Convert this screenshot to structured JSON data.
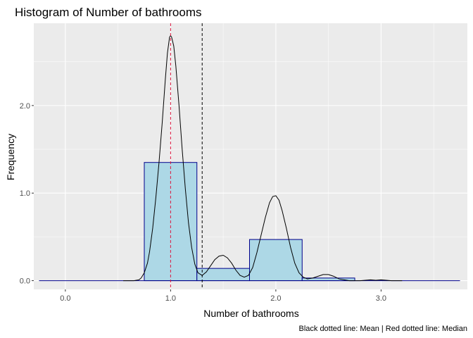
{
  "chart_data": {
    "type": "bar",
    "title": "Histogram of Number of bathrooms",
    "xlabel": "Number of bathrooms",
    "ylabel": "Frequency",
    "caption": "Black dotted  line: Mean   |    Red dotted line: Median",
    "xlim": [
      -0.3,
      3.82
    ],
    "ylim": [
      -0.1,
      2.94
    ],
    "x_ticks": [
      0.0,
      1.0,
      2.0,
      3.0
    ],
    "x_tick_labels": [
      "0.0",
      "1.0",
      "2.0",
      "3.0"
    ],
    "y_ticks": [
      0.0,
      1.0,
      2.0
    ],
    "y_tick_labels": [
      "0.0",
      "1.0",
      "2.0"
    ],
    "grid": true,
    "bins": [
      {
        "x_min": -0.25,
        "x_max": 0.25,
        "value": 0.0
      },
      {
        "x_min": 0.25,
        "x_max": 0.75,
        "value": 0.0
      },
      {
        "x_min": 0.75,
        "x_max": 1.25,
        "value": 1.35
      },
      {
        "x_min": 1.25,
        "x_max": 1.75,
        "value": 0.14
      },
      {
        "x_min": 1.75,
        "x_max": 2.25,
        "value": 0.47
      },
      {
        "x_min": 2.25,
        "x_max": 2.75,
        "value": 0.03
      },
      {
        "x_min": 2.75,
        "x_max": 3.25,
        "value": 0.0
      },
      {
        "x_min": 3.25,
        "x_max": 3.75,
        "value": 0.0
      }
    ],
    "density": {
      "x": [
        0.55,
        0.65,
        0.7,
        0.72,
        0.75,
        0.78,
        0.8,
        0.83,
        0.86,
        0.89,
        0.92,
        0.95,
        0.97,
        0.99,
        1.0,
        1.01,
        1.03,
        1.05,
        1.08,
        1.11,
        1.14,
        1.17,
        1.2,
        1.23,
        1.26,
        1.3,
        1.34,
        1.38,
        1.42,
        1.46,
        1.5,
        1.54,
        1.58,
        1.62,
        1.66,
        1.7,
        1.74,
        1.78,
        1.82,
        1.86,
        1.9,
        1.94,
        1.97,
        2.0,
        2.03,
        2.06,
        2.1,
        2.14,
        2.18,
        2.22,
        2.26,
        2.3,
        2.35,
        2.4,
        2.45,
        2.5,
        2.55,
        2.6,
        2.65,
        2.7,
        2.75,
        2.8,
        2.85,
        2.9,
        2.95,
        3.0,
        3.05,
        3.1,
        3.15,
        3.2
      ],
      "y": [
        0.0,
        0.0,
        0.01,
        0.03,
        0.09,
        0.2,
        0.33,
        0.6,
        0.95,
        1.35,
        1.8,
        2.3,
        2.6,
        2.78,
        2.8,
        2.78,
        2.68,
        2.45,
        2.0,
        1.5,
        1.05,
        0.66,
        0.38,
        0.19,
        0.09,
        0.06,
        0.1,
        0.17,
        0.24,
        0.28,
        0.29,
        0.26,
        0.2,
        0.12,
        0.06,
        0.04,
        0.06,
        0.15,
        0.32,
        0.52,
        0.72,
        0.89,
        0.96,
        0.97,
        0.92,
        0.8,
        0.6,
        0.38,
        0.2,
        0.09,
        0.04,
        0.02,
        0.03,
        0.05,
        0.07,
        0.07,
        0.05,
        0.02,
        0.01,
        0.0,
        0.0,
        0.0,
        0.005,
        0.01,
        0.005,
        0.01,
        0.005,
        0.0,
        0.0,
        0.0
      ]
    },
    "reference_lines": [
      {
        "name": "Median",
        "x": 1.0,
        "color": "#DC143C",
        "style": "dashed"
      },
      {
        "name": "Mean",
        "x": 1.3,
        "color": "#000000",
        "style": "dashed"
      }
    ],
    "colors": {
      "panel_background": "#EBEBEB",
      "grid_major": "#FFFFFF",
      "bar_fill": "#ADD8E6",
      "bar_outline": "#00008B",
      "density_line": "#000000",
      "baseline": "#00008B"
    }
  }
}
